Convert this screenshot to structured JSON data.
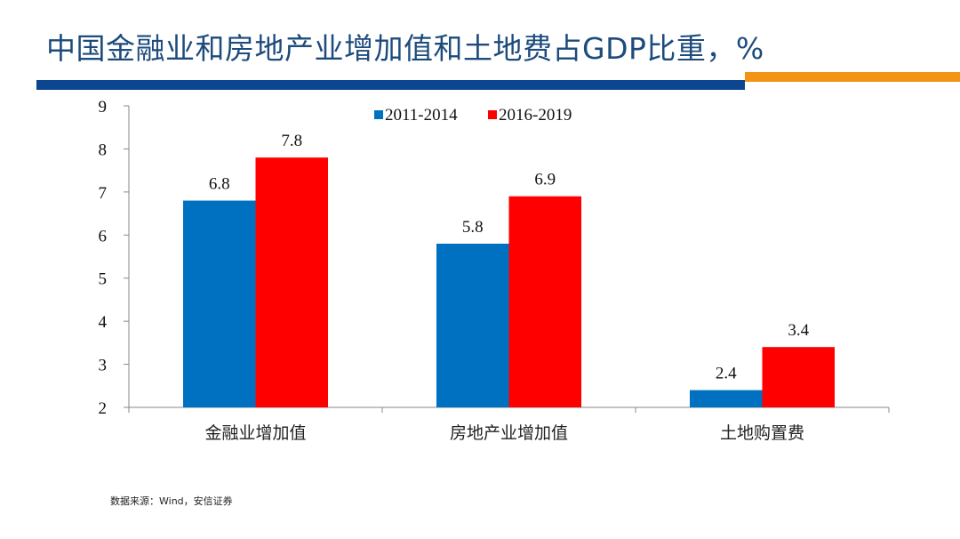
{
  "header": {
    "title": "中国金融业和房地产业增加值和土地费占GDP比重，%"
  },
  "footer": {
    "source": "数据来源：Wind，安信证券"
  },
  "colors": {
    "title": "#1d4b7c",
    "rule_blue": "#0d4690",
    "rule_orange": "#f39414",
    "series_1": "#0070c0",
    "series_2": "#ff0000"
  },
  "chart_data": {
    "type": "bar",
    "title": "中国金融业和房地产业增加值和土地费占GDP比重，%",
    "xlabel": "",
    "ylabel": "",
    "categories": [
      "金融业增加值",
      "房地产业增加值",
      "土地购置费"
    ],
    "series": [
      {
        "name": "2011-2014",
        "color": "#0070c0",
        "values": [
          6.8,
          5.8,
          2.4
        ]
      },
      {
        "name": "2016-2019",
        "color": "#ff0000",
        "values": [
          7.8,
          6.9,
          3.4
        ]
      }
    ],
    "ylim": [
      2,
      9
    ],
    "yticks": [
      2,
      3,
      4,
      5,
      6,
      7,
      8,
      9
    ],
    "grid": false,
    "legend": "top-center",
    "data_labels": true
  }
}
